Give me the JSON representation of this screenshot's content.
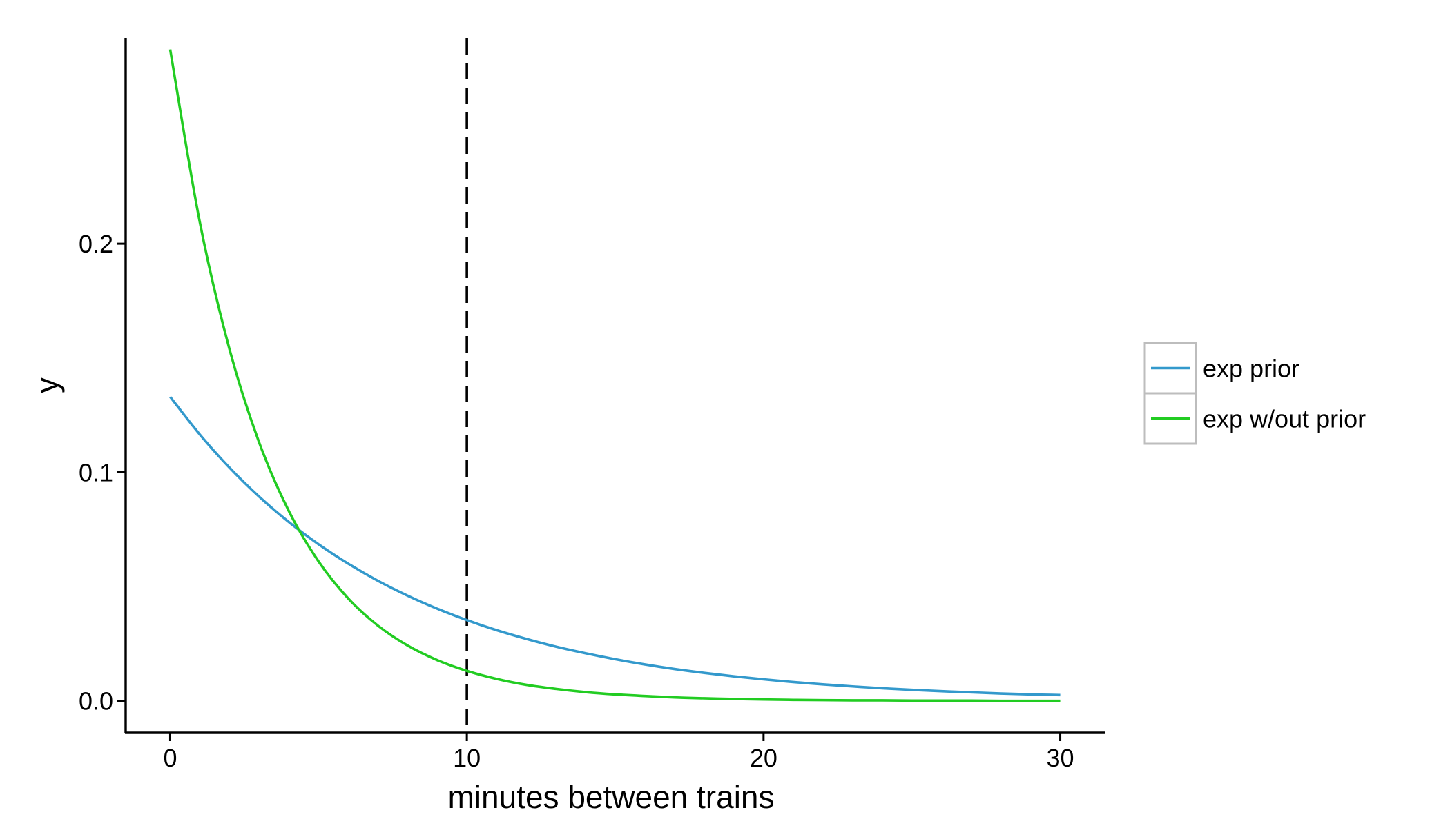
{
  "chart_data": {
    "type": "line",
    "title": "",
    "xlabel": "minutes between trains",
    "ylabel": "y",
    "xlim": [
      -1.5,
      31.5
    ],
    "ylim": [
      -0.014,
      0.29
    ],
    "x_ticks": [
      0,
      10,
      20,
      30
    ],
    "x_tick_labels": [
      "0",
      "10",
      "20",
      "30"
    ],
    "y_ticks": [
      0.0,
      0.1,
      0.2
    ],
    "y_tick_labels": [
      "0.0",
      "0.1",
      "0.2"
    ],
    "grid": false,
    "legend_position": "right",
    "reference_lines": [
      {
        "axis": "x",
        "value": 10,
        "style": "dashed",
        "color": "#000000"
      }
    ],
    "series": [
      {
        "name": "exp prior",
        "color": "#3399cc",
        "x": [
          0,
          1,
          2,
          3,
          4,
          5,
          6,
          7,
          8,
          9,
          10,
          11,
          12,
          13,
          14,
          15,
          16,
          17,
          18,
          19,
          20,
          21,
          22,
          23,
          24,
          25,
          26,
          27,
          28,
          29,
          30
        ],
        "y": [
          0.133,
          0.1165,
          0.102,
          0.0893,
          0.0782,
          0.0685,
          0.06,
          0.0525,
          0.046,
          0.0403,
          0.0353,
          0.0309,
          0.0271,
          0.0237,
          0.0208,
          0.0182,
          0.0159,
          0.0139,
          0.0122,
          0.0107,
          0.0094,
          0.0082,
          0.0072,
          0.0063,
          0.0055,
          0.0048,
          0.0042,
          0.0037,
          0.0032,
          0.0028,
          0.0025
        ]
      },
      {
        "name": "exp w/out prior",
        "color": "#22cc22",
        "x": [
          0,
          1,
          2,
          3,
          4,
          5,
          6,
          7,
          8,
          9,
          10,
          11,
          12,
          13,
          14,
          15,
          16,
          17,
          18,
          19,
          20,
          21,
          22,
          23,
          24,
          25,
          26,
          27,
          28,
          29,
          30
        ],
        "y": [
          0.285,
          0.2094,
          0.1538,
          0.113,
          0.083,
          0.061,
          0.0448,
          0.0329,
          0.0242,
          0.0178,
          0.0131,
          0.0096,
          0.007,
          0.0052,
          0.0038,
          0.0028,
          0.0021,
          0.0015,
          0.0011,
          0.0008,
          0.0006,
          0.0004,
          0.0003,
          0.0002,
          0.0002,
          0.0001,
          0.0001,
          0.0001,
          0.0,
          0.0,
          0.0
        ]
      }
    ]
  }
}
